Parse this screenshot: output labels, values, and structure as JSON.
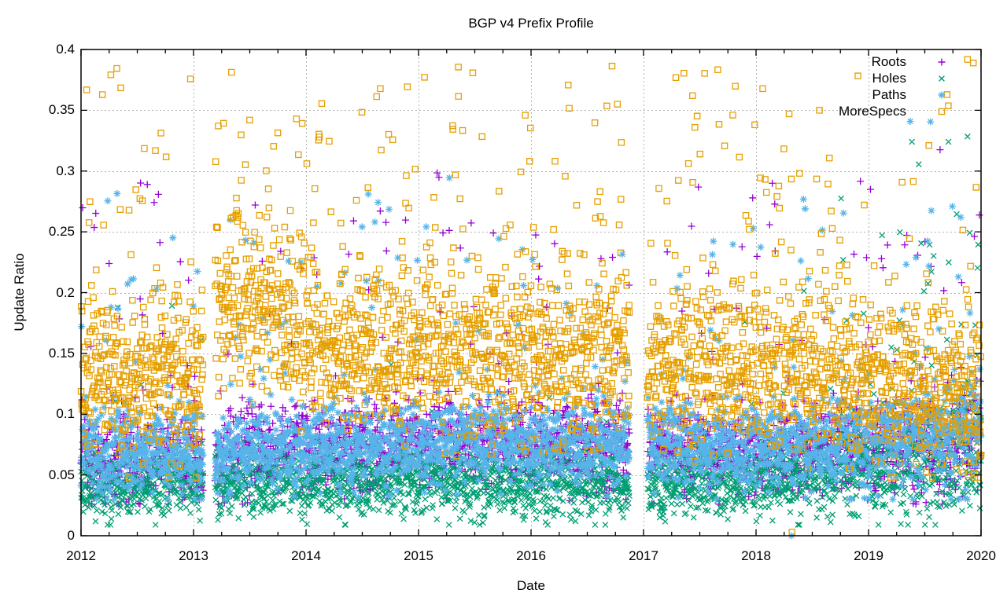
{
  "page": {
    "background": "#ffffff"
  },
  "chart_data": {
    "type": "scatter",
    "title": "BGP v4 Prefix Profile",
    "xlabel": "Date",
    "ylabel": "Update Ratio",
    "x_range": [
      2012,
      2020
    ],
    "y_range": [
      0,
      0.4
    ],
    "x_tick_labels": [
      "2012",
      "2013",
      "2014",
      "2015",
      "2016",
      "2017",
      "2018",
      "2019",
      "2020"
    ],
    "x_tick_values": [
      2012,
      2013,
      2014,
      2015,
      2016,
      2017,
      2018,
      2019,
      2020
    ],
    "x_minor_per_year": 4,
    "y_tick_labels": [
      "0",
      "0.05",
      "0.1",
      "0.15",
      "0.2",
      "0.25",
      "0.3",
      "0.35",
      "0.4"
    ],
    "y_tick_values": [
      0,
      0.05,
      0.1,
      0.15,
      0.2,
      0.25,
      0.3,
      0.35,
      0.4
    ],
    "grid": {
      "show": true,
      "color": "#b2b2b2",
      "dash": [
        2,
        3
      ]
    },
    "frame_color": "#000000",
    "legend_position": "top-right-inside",
    "sampling": {
      "points_per_year": 365,
      "seed": 20121,
      "x_jitter_days": 0.8
    },
    "data_gaps": [
      [
        2013.085,
        2013.19
      ],
      [
        2016.874,
        2017.035
      ]
    ],
    "series": [
      {
        "name": "Roots",
        "marker": "plus",
        "color": "#9400d3",
        "centers": [
          [
            2012,
            0.065
          ],
          [
            2013,
            0.065
          ],
          [
            2014,
            0.071
          ],
          [
            2015,
            0.074
          ],
          [
            2016,
            0.074
          ],
          [
            2017,
            0.072
          ],
          [
            2018,
            0.068
          ],
          [
            2019,
            0.072
          ],
          [
            2019.7,
            0.077
          ],
          [
            2020,
            0.085
          ]
        ],
        "sd": [
          [
            2012,
            0.018
          ],
          [
            2016,
            0.017
          ],
          [
            2019,
            0.018
          ],
          [
            2020,
            0.024
          ]
        ],
        "min": 0.026,
        "tail": {
          "rate": 0.065,
          "start_offset": 0.025,
          "max": 0.3
        },
        "late": {
          "from": 2019.3,
          "rate": 0.08,
          "start_offset": 0.025,
          "max": 0.335
        }
      },
      {
        "name": "Holes",
        "marker": "cross",
        "color": "#009e73",
        "centers": [
          [
            2012,
            0.04
          ],
          [
            2013,
            0.044
          ],
          [
            2014,
            0.043
          ],
          [
            2015,
            0.044
          ],
          [
            2016,
            0.044
          ],
          [
            2017,
            0.041
          ],
          [
            2018,
            0.046
          ],
          [
            2019,
            0.054
          ],
          [
            2019.6,
            0.06
          ],
          [
            2020,
            0.072
          ]
        ],
        "sd": [
          [
            2012,
            0.014
          ],
          [
            2018,
            0.014
          ],
          [
            2019,
            0.02
          ],
          [
            2020,
            0.027
          ]
        ],
        "min": 0.009,
        "tail": {
          "rate": 0.014,
          "start_offset": 0.02,
          "max": 0.21
        },
        "late": {
          "from": 2018.75,
          "rate": 0.095,
          "start_offset": 0.03,
          "max": 0.33
        }
      },
      {
        "name": "Paths",
        "marker": "asterisk",
        "color": "#56b4e9",
        "centers": [
          [
            2012,
            0.067
          ],
          [
            2013,
            0.066
          ],
          [
            2014,
            0.073
          ],
          [
            2015,
            0.076
          ],
          [
            2016,
            0.076
          ],
          [
            2017,
            0.074
          ],
          [
            2018,
            0.07
          ],
          [
            2019,
            0.075
          ],
          [
            2019.7,
            0.082
          ],
          [
            2020,
            0.09
          ]
        ],
        "sd": [
          [
            2012,
            0.017
          ],
          [
            2016,
            0.016
          ],
          [
            2019,
            0.017
          ],
          [
            2020,
            0.024
          ]
        ],
        "min": 0.03,
        "tail": {
          "rate": 0.055,
          "start_offset": 0.025,
          "max": 0.3
        },
        "late": {
          "from": 2019.2,
          "rate": 0.085,
          "start_offset": 0.03,
          "max": 0.35
        }
      },
      {
        "name": "MoreSpecs",
        "marker": "square",
        "color": "#e69f00",
        "centers": [
          [
            2012,
            0.132
          ],
          [
            2012.8,
            0.128
          ],
          [
            2013.0,
            0.118
          ],
          [
            2013.2,
            0.175
          ],
          [
            2013.45,
            0.19
          ],
          [
            2013.8,
            0.175
          ],
          [
            2014.2,
            0.152
          ],
          [
            2015,
            0.148
          ],
          [
            2016,
            0.15
          ],
          [
            2016.87,
            0.152
          ],
          [
            2017.04,
            0.142
          ],
          [
            2018,
            0.135
          ],
          [
            2019,
            0.123
          ],
          [
            2019.6,
            0.118
          ],
          [
            2020,
            0.12
          ]
        ],
        "sd": [
          [
            2012,
            0.034
          ],
          [
            2013.3,
            0.03
          ],
          [
            2015,
            0.032
          ],
          [
            2019,
            0.03
          ],
          [
            2020,
            0.038
          ]
        ],
        "min": 0.048,
        "tail": {
          "rate": 0.1,
          "start_offset": 0.05,
          "max": 0.392
        }
      }
    ],
    "special_points": [
      {
        "series": "MoreSpecs",
        "x": 2018.32,
        "y": 0.003
      },
      {
        "series": "Paths",
        "x": 2018.315,
        "y": 0.0
      }
    ]
  }
}
